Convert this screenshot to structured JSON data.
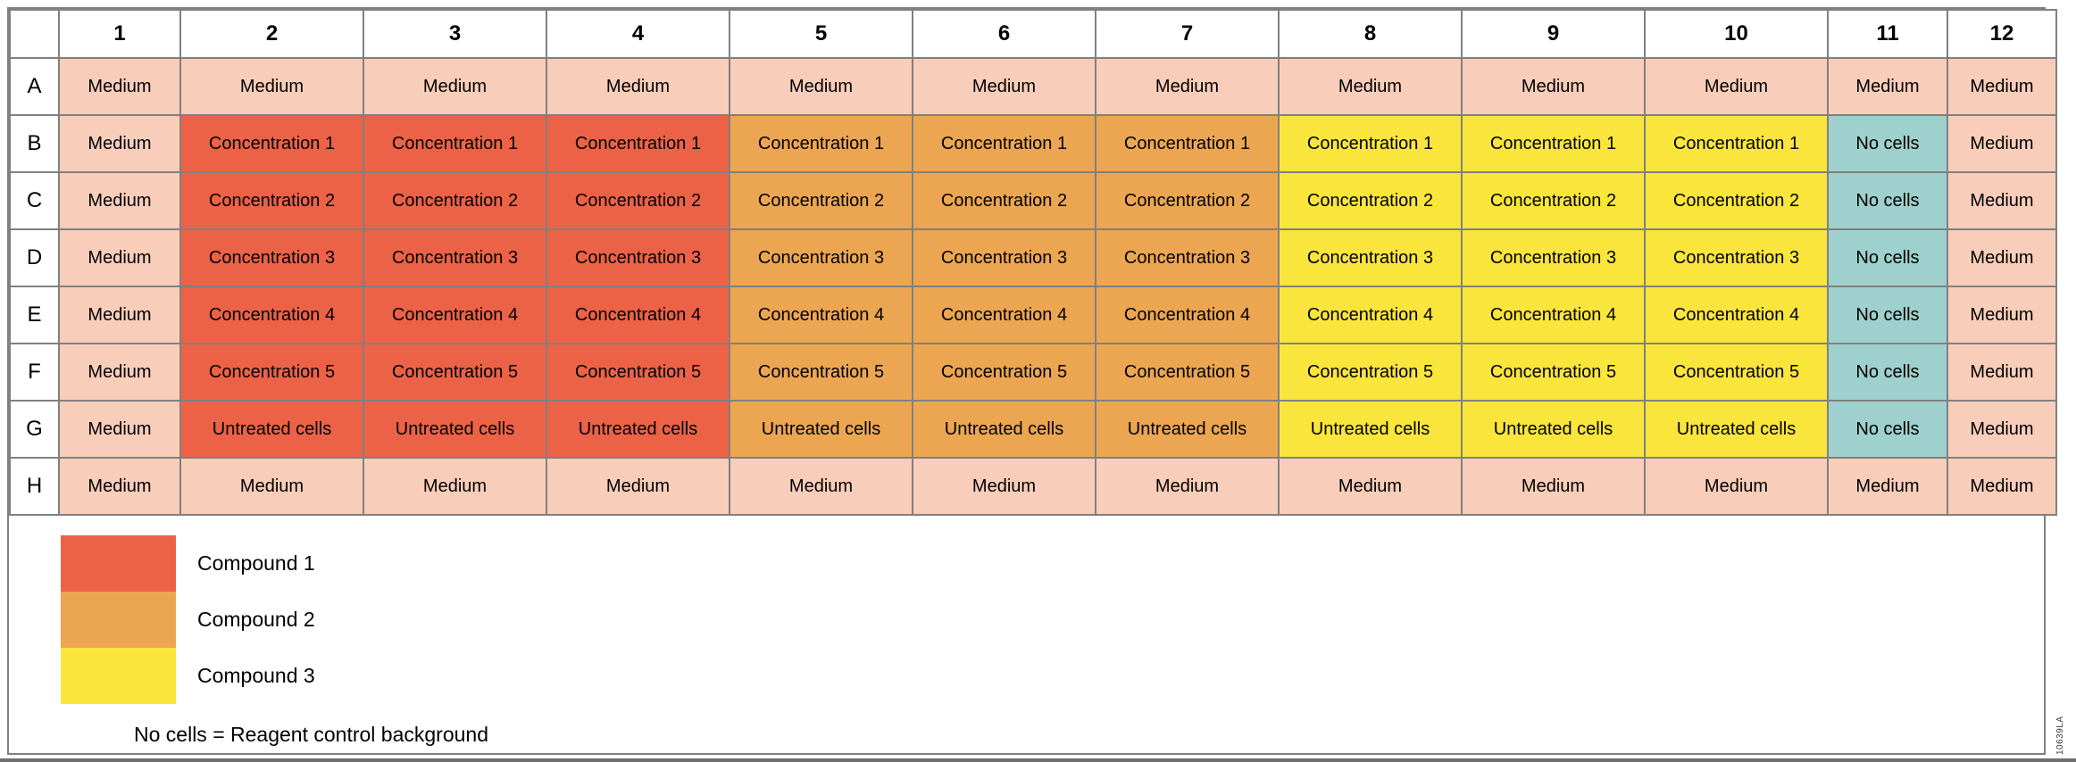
{
  "colors": {
    "medium": "#F8CDB9",
    "compound1": "#EC6246",
    "compound2": "#ECA651",
    "compound3": "#F9E53B",
    "no_cells": "#9ED0CD",
    "grid_line": "#808080",
    "bottom_bar": "#6E6E6E",
    "header_bg": "#FFFFFF",
    "text": "#000000"
  },
  "plate": {
    "columns": [
      "1",
      "2",
      "3",
      "4",
      "5",
      "6",
      "7",
      "8",
      "9",
      "10",
      "11",
      "12"
    ],
    "rows": [
      {
        "label": "A",
        "cells": [
          {
            "text": "Medium",
            "type": "medium"
          },
          {
            "text": "Medium",
            "type": "medium"
          },
          {
            "text": "Medium",
            "type": "medium"
          },
          {
            "text": "Medium",
            "type": "medium"
          },
          {
            "text": "Medium",
            "type": "medium"
          },
          {
            "text": "Medium",
            "type": "medium"
          },
          {
            "text": "Medium",
            "type": "medium"
          },
          {
            "text": "Medium",
            "type": "medium"
          },
          {
            "text": "Medium",
            "type": "medium"
          },
          {
            "text": "Medium",
            "type": "medium"
          },
          {
            "text": "Medium",
            "type": "medium"
          },
          {
            "text": "Medium",
            "type": "medium"
          }
        ]
      },
      {
        "label": "B",
        "cells": [
          {
            "text": "Medium",
            "type": "medium"
          },
          {
            "text": "Concentration 1",
            "type": "compound1"
          },
          {
            "text": "Concentration 1",
            "type": "compound1"
          },
          {
            "text": "Concentration 1",
            "type": "compound1"
          },
          {
            "text": "Concentration 1",
            "type": "compound2"
          },
          {
            "text": "Concentration 1",
            "type": "compound2"
          },
          {
            "text": "Concentration 1",
            "type": "compound2"
          },
          {
            "text": "Concentration 1",
            "type": "compound3"
          },
          {
            "text": "Concentration 1",
            "type": "compound3"
          },
          {
            "text": "Concentration 1",
            "type": "compound3"
          },
          {
            "text": "No cells",
            "type": "no_cells"
          },
          {
            "text": "Medium",
            "type": "medium"
          }
        ]
      },
      {
        "label": "C",
        "cells": [
          {
            "text": "Medium",
            "type": "medium"
          },
          {
            "text": "Concentration 2",
            "type": "compound1"
          },
          {
            "text": "Concentration 2",
            "type": "compound1"
          },
          {
            "text": "Concentration 2",
            "type": "compound1"
          },
          {
            "text": "Concentration 2",
            "type": "compound2"
          },
          {
            "text": "Concentration 2",
            "type": "compound2"
          },
          {
            "text": "Concentration 2",
            "type": "compound2"
          },
          {
            "text": "Concentration 2",
            "type": "compound3"
          },
          {
            "text": "Concentration 2",
            "type": "compound3"
          },
          {
            "text": "Concentration 2",
            "type": "compound3"
          },
          {
            "text": "No cells",
            "type": "no_cells"
          },
          {
            "text": "Medium",
            "type": "medium"
          }
        ]
      },
      {
        "label": "D",
        "cells": [
          {
            "text": "Medium",
            "type": "medium"
          },
          {
            "text": "Concentration 3",
            "type": "compound1"
          },
          {
            "text": "Concentration 3",
            "type": "compound1"
          },
          {
            "text": "Concentration 3",
            "type": "compound1"
          },
          {
            "text": "Concentration 3",
            "type": "compound2"
          },
          {
            "text": "Concentration 3",
            "type": "compound2"
          },
          {
            "text": "Concentration 3",
            "type": "compound2"
          },
          {
            "text": "Concentration 3",
            "type": "compound3"
          },
          {
            "text": "Concentration 3",
            "type": "compound3"
          },
          {
            "text": "Concentration 3",
            "type": "compound3"
          },
          {
            "text": "No cells",
            "type": "no_cells"
          },
          {
            "text": "Medium",
            "type": "medium"
          }
        ]
      },
      {
        "label": "E",
        "cells": [
          {
            "text": "Medium",
            "type": "medium"
          },
          {
            "text": "Concentration 4",
            "type": "compound1"
          },
          {
            "text": "Concentration 4",
            "type": "compound1"
          },
          {
            "text": "Concentration 4",
            "type": "compound1"
          },
          {
            "text": "Concentration 4",
            "type": "compound2"
          },
          {
            "text": "Concentration 4",
            "type": "compound2"
          },
          {
            "text": "Concentration 4",
            "type": "compound2"
          },
          {
            "text": "Concentration 4",
            "type": "compound3"
          },
          {
            "text": "Concentration 4",
            "type": "compound3"
          },
          {
            "text": "Concentration 4",
            "type": "compound3"
          },
          {
            "text": "No cells",
            "type": "no_cells"
          },
          {
            "text": "Medium",
            "type": "medium"
          }
        ]
      },
      {
        "label": "F",
        "cells": [
          {
            "text": "Medium",
            "type": "medium"
          },
          {
            "text": "Concentration 5",
            "type": "compound1"
          },
          {
            "text": "Concentration 5",
            "type": "compound1"
          },
          {
            "text": "Concentration 5",
            "type": "compound1"
          },
          {
            "text": "Concentration 5",
            "type": "compound2"
          },
          {
            "text": "Concentration 5",
            "type": "compound2"
          },
          {
            "text": "Concentration 5",
            "type": "compound2"
          },
          {
            "text": "Concentration 5",
            "type": "compound3"
          },
          {
            "text": "Concentration 5",
            "type": "compound3"
          },
          {
            "text": "Concentration 5",
            "type": "compound3"
          },
          {
            "text": "No cells",
            "type": "no_cells"
          },
          {
            "text": "Medium",
            "type": "medium"
          }
        ]
      },
      {
        "label": "G",
        "cells": [
          {
            "text": "Medium",
            "type": "medium"
          },
          {
            "text": "Untreated cells",
            "type": "compound1"
          },
          {
            "text": "Untreated cells",
            "type": "compound1"
          },
          {
            "text": "Untreated cells",
            "type": "compound1"
          },
          {
            "text": "Untreated cells",
            "type": "compound2"
          },
          {
            "text": "Untreated cells",
            "type": "compound2"
          },
          {
            "text": "Untreated cells",
            "type": "compound2"
          },
          {
            "text": "Untreated cells",
            "type": "compound3"
          },
          {
            "text": "Untreated cells",
            "type": "compound3"
          },
          {
            "text": "Untreated cells",
            "type": "compound3"
          },
          {
            "text": "No cells",
            "type": "no_cells"
          },
          {
            "text": "Medium",
            "type": "medium"
          }
        ]
      },
      {
        "label": "H",
        "cells": [
          {
            "text": "Medium",
            "type": "medium"
          },
          {
            "text": "Medium",
            "type": "medium"
          },
          {
            "text": "Medium",
            "type": "medium"
          },
          {
            "text": "Medium",
            "type": "medium"
          },
          {
            "text": "Medium",
            "type": "medium"
          },
          {
            "text": "Medium",
            "type": "medium"
          },
          {
            "text": "Medium",
            "type": "medium"
          },
          {
            "text": "Medium",
            "type": "medium"
          },
          {
            "text": "Medium",
            "type": "medium"
          },
          {
            "text": "Medium",
            "type": "medium"
          },
          {
            "text": "Medium",
            "type": "medium"
          },
          {
            "text": "Medium",
            "type": "medium"
          }
        ]
      }
    ]
  },
  "legend": {
    "items": [
      {
        "label": "Compound 1",
        "color": "compound1"
      },
      {
        "label": "Compound 2",
        "color": "compound2"
      },
      {
        "label": "Compound 3",
        "color": "compound3"
      }
    ],
    "note": "No cells = Reagent control background"
  },
  "watermark": "10639LA"
}
